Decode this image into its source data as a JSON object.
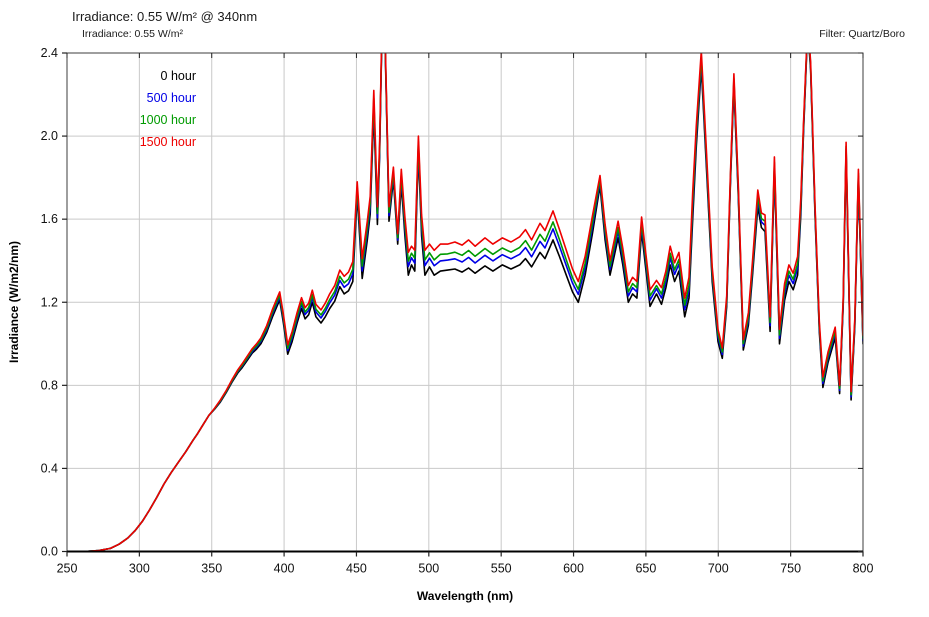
{
  "page": {
    "title": "Irradiance: 0.55 W/m² @ 340nm",
    "subtitle": "Irradiance: 0.55 W/m²",
    "filter_note": "Filter: Quartz/Boro"
  },
  "colors": {
    "grid": "#c9c9c9",
    "frame": "#3d3d3d",
    "axis": "#000000",
    "tick": "#222222",
    "tick_label": "#111111"
  },
  "chart_data": {
    "type": "line",
    "title": "Irradiance: 0.55 W/m² @ 340nm",
    "subtitle": "Irradiance: 0.55 W/m²",
    "annotation": "Filter: Quartz/Boro",
    "xlabel": "Wavelength (nm)",
    "ylabel": "Irradiance (W/m2/nm)",
    "xlim": [
      250,
      800
    ],
    "ylim": [
      0,
      2.4
    ],
    "xticks": [
      250,
      300,
      350,
      400,
      450,
      500,
      550,
      600,
      650,
      700,
      750,
      800
    ],
    "yticks": [
      0,
      0.4,
      0.8,
      1.2,
      1.6,
      2.0,
      2.4
    ],
    "ytick_labels": [
      "0.0",
      "0.4",
      "0.8",
      "1.2",
      "1.6",
      "2.0",
      "2.4"
    ],
    "grid": true,
    "legend_position": "top-left-inside",
    "x": [
      250,
      262,
      272,
      280,
      286,
      292,
      297,
      302,
      307,
      312,
      317,
      322,
      327,
      332,
      337,
      340,
      344,
      348,
      352,
      356,
      360,
      364,
      368,
      371,
      375,
      378,
      381,
      384,
      388,
      392,
      395,
      397,
      399.5,
      402.5,
      405.5,
      409,
      412,
      414.5,
      417,
      419.5,
      422,
      425.5,
      428.5,
      431.5,
      435,
      438.5,
      441.5,
      444.5,
      447.5,
      450.5,
      454,
      457.5,
      459.5,
      462,
      464.5,
      466,
      467.5,
      468.5,
      469.8,
      472.5,
      475.5,
      478.5,
      481,
      483.5,
      485.8,
      488,
      490.3,
      492.8,
      495,
      497.3,
      500.5,
      503.7,
      508,
      513,
      518,
      523,
      527.5,
      532,
      538.8,
      544.3,
      550.8,
      556.8,
      562.8,
      566.8,
      571,
      576.8,
      580.3,
      585.8,
      590.3,
      595,
      599.3,
      603.3,
      608,
      613,
      618.3,
      621.8,
      625.2,
      628,
      630.8,
      634,
      637.8,
      640.8,
      643.8,
      647,
      652.8,
      657.3,
      660.8,
      663.8,
      666.8,
      669.8,
      672.8,
      676.8,
      679.8,
      682.3,
      684.8,
      688.3,
      691.8,
      695.8,
      699.8,
      702.8,
      705.8,
      708.3,
      710.8,
      713.8,
      717.3,
      720.8,
      723.8,
      727.3,
      729.8,
      732.3,
      735.8,
      738.8,
      742.3,
      745.8,
      748.8,
      751.8,
      754.8,
      757,
      758.8,
      761.8,
      763.8,
      766.8,
      769.8,
      772.3,
      775.8,
      780.8,
      783.8,
      786.3,
      788.3,
      791.8,
      794.3,
      796.8,
      800
    ],
    "series": [
      {
        "label": "0 hour",
        "color": "#000000",
        "values": [
          0,
          0,
          0.005,
          0.015,
          0.035,
          0.065,
          0.1,
          0.145,
          0.2,
          0.26,
          0.325,
          0.38,
          0.43,
          0.48,
          0.535,
          0.565,
          0.61,
          0.655,
          0.685,
          0.72,
          0.765,
          0.815,
          0.86,
          0.885,
          0.925,
          0.955,
          0.975,
          1.0,
          1.055,
          1.13,
          1.18,
          1.21,
          1.1,
          0.95,
          1.01,
          1.1,
          1.17,
          1.12,
          1.14,
          1.2,
          1.13,
          1.1,
          1.13,
          1.17,
          1.205,
          1.275,
          1.24,
          1.255,
          1.3,
          1.715,
          1.315,
          1.5,
          1.625,
          2.12,
          1.575,
          1.9,
          2.46,
          2.52,
          2.44,
          1.59,
          1.79,
          1.48,
          1.77,
          1.52,
          1.33,
          1.38,
          1.35,
          1.93,
          1.52,
          1.33,
          1.37,
          1.33,
          1.35,
          1.355,
          1.36,
          1.345,
          1.365,
          1.34,
          1.375,
          1.35,
          1.38,
          1.36,
          1.38,
          1.41,
          1.37,
          1.44,
          1.41,
          1.5,
          1.42,
          1.33,
          1.25,
          1.2,
          1.33,
          1.53,
          1.76,
          1.5,
          1.33,
          1.42,
          1.51,
          1.38,
          1.2,
          1.24,
          1.22,
          1.54,
          1.18,
          1.24,
          1.19,
          1.27,
          1.38,
          1.3,
          1.35,
          1.13,
          1.22,
          1.6,
          1.95,
          2.33,
          1.85,
          1.3,
          1.01,
          0.93,
          1.18,
          1.75,
          2.24,
          1.72,
          0.97,
          1.09,
          1.34,
          1.66,
          1.56,
          1.54,
          1.06,
          1.83,
          1.0,
          1.21,
          1.3,
          1.26,
          1.33,
          1.62,
          2.0,
          2.52,
          2.32,
          1.62,
          1.06,
          0.79,
          0.91,
          1.03,
          0.76,
          1.18,
          1.92,
          0.73,
          1.08,
          1.79,
          1.0
        ]
      },
      {
        "label": "500 hour",
        "color": "#0000e6",
        "values": [
          0,
          0,
          0.005,
          0.015,
          0.035,
          0.065,
          0.1,
          0.145,
          0.2,
          0.26,
          0.325,
          0.38,
          0.43,
          0.48,
          0.535,
          0.565,
          0.61,
          0.655,
          0.687,
          0.724,
          0.769,
          0.82,
          0.866,
          0.892,
          0.933,
          0.963,
          0.985,
          1.011,
          1.067,
          1.144,
          1.194,
          1.225,
          1.116,
          0.967,
          1.028,
          1.119,
          1.19,
          1.141,
          1.161,
          1.222,
          1.153,
          1.124,
          1.155,
          1.197,
          1.234,
          1.305,
          1.272,
          1.289,
          1.336,
          1.74,
          1.351,
          1.534,
          1.657,
          2.158,
          1.607,
          1.923,
          2.475,
          2.531,
          2.455,
          1.617,
          1.813,
          1.499,
          1.797,
          1.554,
          1.372,
          1.414,
          1.388,
          1.957,
          1.558,
          1.376,
          1.412,
          1.376,
          1.399,
          1.403,
          1.409,
          1.394,
          1.416,
          1.389,
          1.426,
          1.399,
          1.429,
          1.409,
          1.431,
          1.463,
          1.419,
          1.493,
          1.461,
          1.553,
          1.469,
          1.376,
          1.292,
          1.238,
          1.364,
          1.562,
          1.779,
          1.529,
          1.357,
          1.449,
          1.54,
          1.41,
          1.23,
          1.27,
          1.25,
          1.567,
          1.21,
          1.265,
          1.22,
          1.3,
          1.414,
          1.334,
          1.384,
          1.164,
          1.258,
          1.649,
          1.988,
          2.36,
          1.88,
          1.327,
          1.033,
          0.949,
          1.199,
          1.769,
          2.263,
          1.743,
          0.989,
          1.113,
          1.367,
          1.69,
          1.587,
          1.57,
          1.087,
          1.857,
          1.027,
          1.24,
          1.33,
          1.29,
          1.364,
          1.65,
          2.019,
          2.531,
          2.335,
          1.639,
          1.079,
          0.809,
          0.929,
          1.049,
          0.775,
          1.195,
          1.939,
          0.745,
          1.095,
          1.809,
          1.015
        ]
      },
      {
        "label": "1000 hour",
        "color": "#009b00",
        "values": [
          0,
          0,
          0.005,
          0.015,
          0.035,
          0.065,
          0.1,
          0.145,
          0.2,
          0.26,
          0.325,
          0.38,
          0.43,
          0.48,
          0.535,
          0.565,
          0.61,
          0.655,
          0.688,
          0.726,
          0.771,
          0.822,
          0.869,
          0.896,
          0.937,
          0.969,
          0.991,
          1.017,
          1.075,
          1.152,
          1.204,
          1.235,
          1.126,
          0.978,
          1.04,
          1.131,
          1.202,
          1.153,
          1.175,
          1.236,
          1.167,
          1.139,
          1.171,
          1.213,
          1.252,
          1.325,
          1.293,
          1.311,
          1.359,
          1.755,
          1.374,
          1.556,
          1.678,
          2.182,
          1.628,
          1.937,
          2.485,
          2.539,
          2.465,
          1.633,
          1.827,
          1.511,
          1.813,
          1.576,
          1.398,
          1.436,
          1.412,
          1.973,
          1.582,
          1.404,
          1.438,
          1.404,
          1.431,
          1.433,
          1.441,
          1.426,
          1.449,
          1.421,
          1.459,
          1.431,
          1.461,
          1.441,
          1.464,
          1.497,
          1.451,
          1.527,
          1.494,
          1.587,
          1.501,
          1.404,
          1.318,
          1.262,
          1.386,
          1.583,
          1.791,
          1.547,
          1.373,
          1.467,
          1.56,
          1.43,
          1.25,
          1.29,
          1.27,
          1.583,
          1.23,
          1.28,
          1.24,
          1.32,
          1.436,
          1.356,
          1.406,
          1.186,
          1.282,
          1.681,
          2.012,
          2.38,
          1.9,
          1.343,
          1.047,
          0.961,
          1.211,
          1.781,
          2.277,
          1.757,
          1.001,
          1.127,
          1.383,
          1.71,
          1.603,
          1.59,
          1.103,
          1.873,
          1.043,
          1.26,
          1.35,
          1.31,
          1.386,
          1.67,
          2.031,
          2.539,
          2.345,
          1.651,
          1.091,
          0.821,
          0.941,
          1.061,
          0.785,
          1.205,
          1.951,
          0.755,
          1.105,
          1.821,
          1.025
        ]
      },
      {
        "label": "1500 hour",
        "color": "#ee0000",
        "values": [
          0,
          0,
          0.005,
          0.015,
          0.035,
          0.065,
          0.1,
          0.145,
          0.2,
          0.26,
          0.325,
          0.38,
          0.43,
          0.48,
          0.535,
          0.565,
          0.61,
          0.655,
          0.69,
          0.73,
          0.775,
          0.827,
          0.875,
          0.903,
          0.945,
          0.977,
          1.0,
          1.028,
          1.087,
          1.166,
          1.218,
          1.25,
          1.142,
          0.995,
          1.058,
          1.15,
          1.222,
          1.174,
          1.196,
          1.258,
          1.19,
          1.163,
          1.196,
          1.24,
          1.28,
          1.355,
          1.325,
          1.345,
          1.395,
          1.78,
          1.41,
          1.59,
          1.71,
          2.22,
          1.66,
          1.96,
          2.5,
          2.55,
          2.48,
          1.66,
          1.85,
          1.53,
          1.84,
          1.61,
          1.44,
          1.47,
          1.45,
          2.0,
          1.62,
          1.45,
          1.48,
          1.45,
          1.48,
          1.48,
          1.49,
          1.475,
          1.5,
          1.47,
          1.51,
          1.48,
          1.51,
          1.49,
          1.515,
          1.55,
          1.5,
          1.58,
          1.545,
          1.64,
          1.55,
          1.45,
          1.36,
          1.3,
          1.42,
          1.615,
          1.81,
          1.575,
          1.4,
          1.495,
          1.59,
          1.46,
          1.28,
          1.32,
          1.3,
          1.61,
          1.26,
          1.305,
          1.27,
          1.35,
          1.47,
          1.39,
          1.44,
          1.22,
          1.32,
          1.73,
          2.05,
          2.41,
          1.93,
          1.37,
          1.07,
          0.98,
          1.23,
          1.8,
          2.3,
          1.78,
          1.02,
          1.15,
          1.41,
          1.74,
          1.63,
          1.62,
          1.13,
          1.9,
          1.07,
          1.29,
          1.38,
          1.34,
          1.42,
          1.7,
          2.05,
          2.55,
          2.36,
          1.67,
          1.11,
          0.84,
          0.96,
          1.08,
          0.8,
          1.22,
          1.97,
          0.77,
          1.12,
          1.84,
          1.04
        ]
      }
    ]
  }
}
